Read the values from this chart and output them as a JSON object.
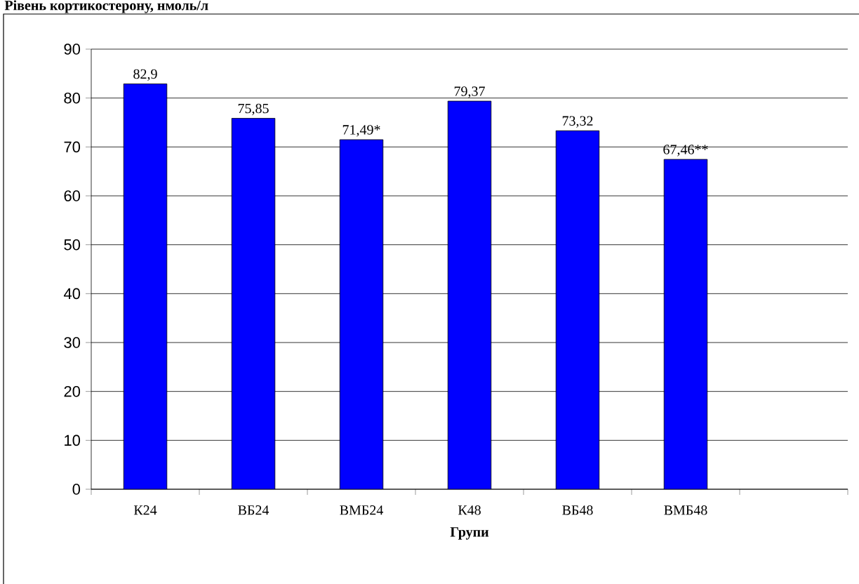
{
  "chart_data": {
    "type": "bar",
    "title": "Рівень кортикостерону, нмоль/л",
    "xlabel": "Групи",
    "categories": [
      "К24",
      "ВБ24",
      "ВМБ24",
      "К48",
      "ВБ48",
      "ВМБ48",
      null
    ],
    "values": [
      82.9,
      75.85,
      71.49,
      79.37,
      73.32,
      67.46,
      null
    ],
    "value_labels": [
      "82,9",
      "75,85",
      "71,49*",
      "79,37",
      "73,32",
      "67,46**",
      null
    ],
    "color": "#0000ff",
    "ylim": [
      0,
      90
    ],
    "yticks": [
      0,
      10,
      20,
      30,
      40,
      50,
      60,
      70,
      80,
      90
    ],
    "grid": "y"
  }
}
